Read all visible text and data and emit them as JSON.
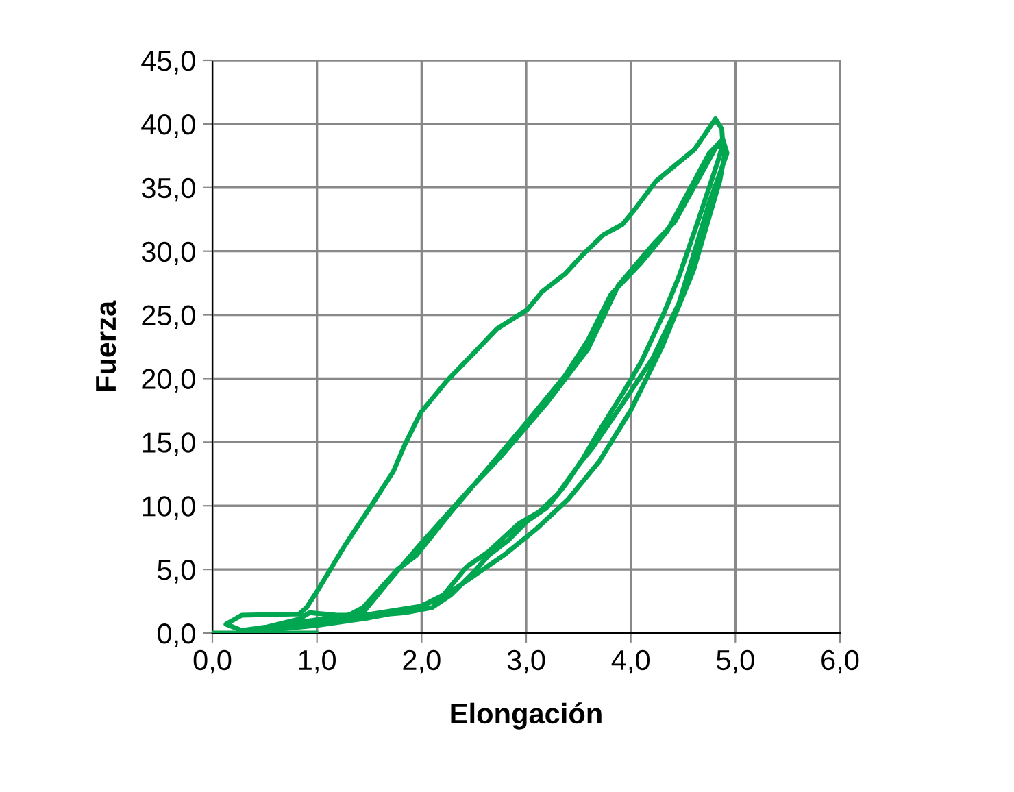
{
  "chart_data": {
    "type": "line",
    "xlabel": "Elongación",
    "ylabel": "Fuerza",
    "xlim": [
      0,
      6
    ],
    "ylim": [
      0,
      45
    ],
    "xticks": [
      {
        "value": 0,
        "label": "0,0"
      },
      {
        "value": 1,
        "label": "1,0"
      },
      {
        "value": 2,
        "label": "2,0"
      },
      {
        "value": 3,
        "label": "3,0"
      },
      {
        "value": 4,
        "label": "4,0"
      },
      {
        "value": 5,
        "label": "5,0"
      },
      {
        "value": 6,
        "label": "6,0"
      }
    ],
    "yticks": [
      {
        "value": 0,
        "label": "0,0"
      },
      {
        "value": 5,
        "label": "5,0"
      },
      {
        "value": 10,
        "label": "10,0"
      },
      {
        "value": 15,
        "label": "15,0"
      },
      {
        "value": 20,
        "label": "20,0"
      },
      {
        "value": 25,
        "label": "25,0"
      },
      {
        "value": 30,
        "label": "30,0"
      },
      {
        "value": 35,
        "label": "35,0"
      },
      {
        "value": 40,
        "label": "40,0"
      },
      {
        "value": 45,
        "label": "45,0"
      }
    ],
    "grid": true,
    "legend": false,
    "marker": "none",
    "line_style": "solid",
    "series": [
      {
        "color": "#00a650",
        "x": [
          0,
          0.99
        ],
        "values": [
          0,
          0
        ]
      },
      {
        "color": "#00a650",
        "x": [
          0.28,
          0.13,
          0.28,
          0.83,
          0.9,
          1.01,
          1.26,
          1.55,
          1.73,
          1.84,
          1.99,
          2.24,
          2.5,
          2.72,
          3.01,
          3.15,
          3.37,
          3.55,
          3.74,
          3.92,
          4.03,
          4.24,
          4.61,
          4.81,
          4.87,
          4.88,
          4.83,
          4.64,
          4.46,
          4.32,
          4.1,
          3.92,
          3.7,
          3.55,
          3.37,
          3.19,
          3.01,
          2.83,
          2.64,
          2.5,
          2.28,
          2.1,
          1.84,
          1.55,
          1.19,
          0.93,
          0.83,
          0.28,
          0.6,
          1.19,
          1.44,
          1.77,
          1.95,
          2.28,
          2.64,
          3.01,
          3.37,
          3.59,
          3.81,
          4.1,
          4.35,
          4.75,
          4.88,
          4.92,
          4.75,
          4.46,
          4.21,
          3.92,
          3.63,
          3.52,
          3.3,
          3.12,
          2.93,
          2.64,
          2.43,
          2.21,
          1.99,
          1.37,
          0.83,
          0.28,
          0.8,
          1.44,
          1.73,
          1.99,
          2.46,
          2.75,
          3.19,
          3.59,
          3.88,
          4.21,
          4.42,
          4.83,
          4.9,
          4.85,
          4.6,
          4.3,
          4.0,
          3.7,
          3.4,
          3.1,
          2.8,
          2.5,
          2.2,
          1.9,
          1.5,
          1.0,
          0.5
        ],
        "values": [
          0.2,
          0.7,
          1.4,
          1.5,
          2.0,
          3.4,
          6.8,
          10.4,
          12.7,
          14.8,
          17.3,
          19.8,
          22.0,
          23.9,
          25.4,
          26.8,
          28.2,
          29.8,
          31.3,
          32.1,
          33.2,
          35.5,
          38.0,
          40.4,
          39.6,
          38.4,
          37.0,
          32.3,
          28.0,
          25.2,
          21.3,
          18.8,
          15.9,
          13.8,
          11.6,
          9.8,
          8.8,
          7.3,
          6.1,
          4.8,
          3.0,
          2.0,
          1.6,
          1.4,
          1.4,
          1.6,
          1.1,
          0.0,
          0.3,
          0.9,
          2.0,
          5.0,
          6.1,
          9.5,
          13.0,
          16.6,
          20.2,
          23.0,
          26.6,
          29.1,
          31.6,
          37.7,
          38.8,
          37.7,
          33.8,
          25.9,
          21.6,
          18.0,
          14.5,
          13.4,
          10.9,
          9.5,
          8.6,
          6.4,
          5.2,
          3.0,
          2.1,
          1.3,
          0.5,
          0.2,
          0.8,
          1.6,
          4.5,
          7.0,
          11.3,
          13.8,
          18.0,
          22.3,
          27.3,
          30.5,
          32.3,
          38.4,
          37.7,
          35.5,
          28.5,
          22.5,
          17.5,
          13.5,
          10.5,
          8.2,
          6.2,
          4.5,
          2.8,
          1.8,
          1.2,
          0.6,
          0.2
        ]
      }
    ]
  }
}
